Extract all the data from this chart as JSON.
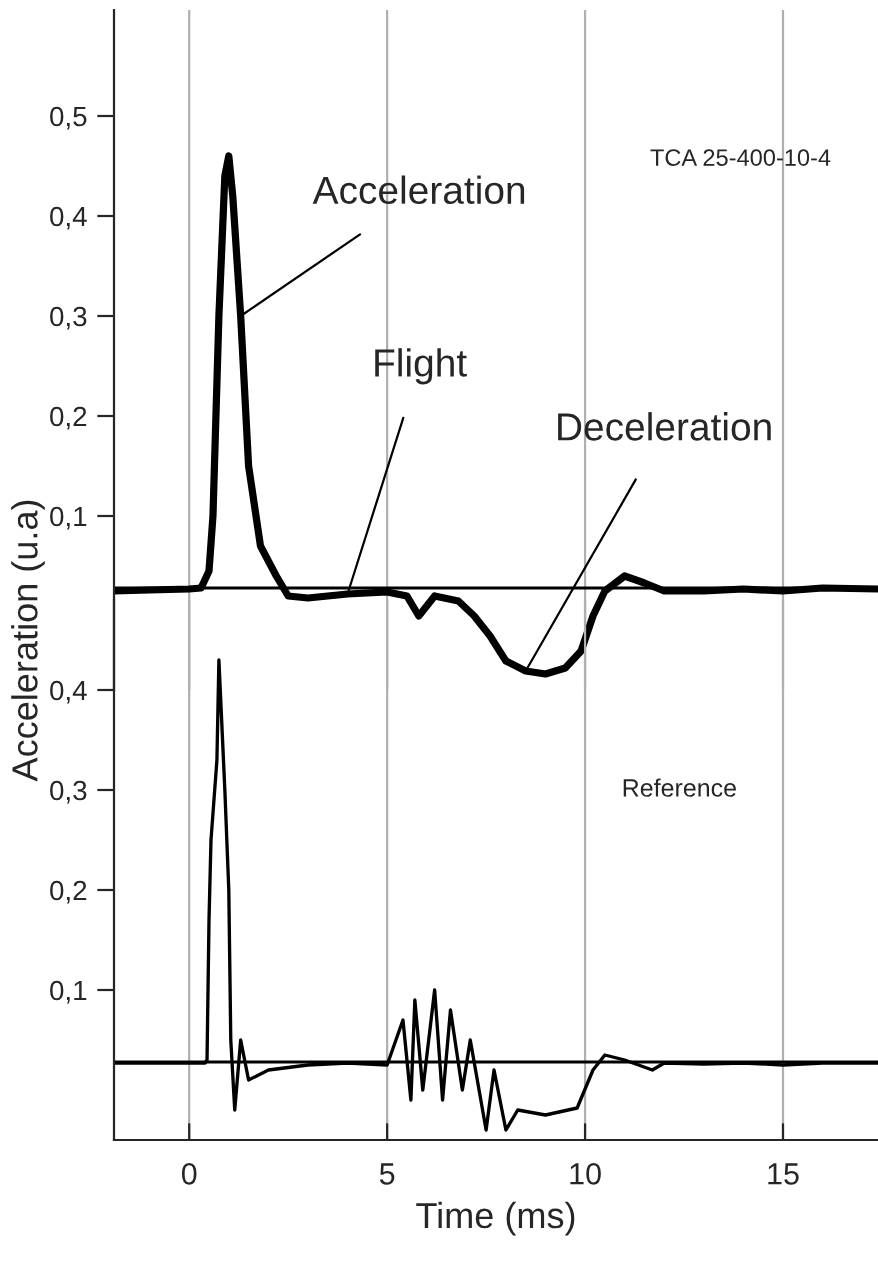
{
  "chart_data": [
    {
      "type": "line",
      "xlim": [
        -1.9,
        17.4
      ],
      "ylim": [
        -0.074,
        0.606
      ],
      "tick_labels": "y",
      "grid": "x",
      "xticks": [
        0,
        5,
        10,
        15
      ],
      "yticks": [
        {
          "value": 0.1,
          "label": "0,1"
        },
        {
          "value": 0.2,
          "label": "0,2"
        },
        {
          "value": 0.3,
          "label": "0,3"
        },
        {
          "value": 0.4,
          "label": "0,4"
        },
        {
          "value": 0.5,
          "label": "0,5"
        }
      ],
      "ylabel": "Acceleration (u.a)",
      "ref_lines": [
        {
          "axis": "y",
          "value": 0.028,
          "color": "#000000"
        }
      ],
      "annotations": [
        "TCA 25-400-10-4",
        {
          "text": "Acceleration",
          "x": 1.3,
          "y": 0.3
        },
        {
          "text": "Flight",
          "x": 4,
          "y": 0.022
        },
        {
          "text": "Deceleration",
          "x": 8.5,
          "y": -0.055
        }
      ],
      "series": [
        {
          "color": "#000000",
          "x": [
            -1.9,
            -1,
            0,
            0.3,
            0.5,
            0.6,
            0.75,
            0.9,
            1.0,
            1.1,
            1.3,
            1.5,
            1.8,
            2.2,
            2.5,
            3,
            4,
            5,
            5.5,
            5.8,
            6.2,
            6.8,
            7.2,
            7.6,
            8,
            8.5,
            9,
            9.5,
            9.9,
            10.2,
            10.5,
            11,
            11.5,
            12,
            13,
            14,
            15,
            16,
            17.4
          ],
          "values": [
            0.025,
            0.026,
            0.027,
            0.028,
            0.045,
            0.1,
            0.3,
            0.44,
            0.46,
            0.42,
            0.3,
            0.15,
            0.07,
            0.04,
            0.02,
            0.018,
            0.022,
            0.024,
            0.02,
            0.0,
            0.02,
            0.015,
            0.0,
            -0.02,
            -0.045,
            -0.055,
            -0.058,
            -0.052,
            -0.035,
            0.0,
            0.025,
            0.04,
            0.033,
            0.025,
            0.025,
            0.027,
            0.025,
            0.028,
            0.027
          ]
        }
      ]
    },
    {
      "type": "line",
      "xlim": [
        -1.9,
        17.4
      ],
      "ylim": [
        -0.05,
        0.49
      ],
      "grid": "x",
      "xlabel": "Time (ms)",
      "xticks": [
        0,
        5,
        10,
        15
      ],
      "yticks": [
        {
          "value": 0.1,
          "label": "0,1"
        },
        {
          "value": 0.2,
          "label": "0,2"
        },
        {
          "value": 0.3,
          "label": "0,3"
        },
        {
          "value": 0.4,
          "label": "0,4"
        }
      ],
      "ref_lines": [
        {
          "axis": "y",
          "value": 0.028,
          "color": "#000000"
        }
      ],
      "annotations": [
        "Reference"
      ],
      "series": [
        {
          "color": "#000000",
          "x": [
            -1.9,
            -1,
            0,
            0.4,
            0.45,
            0.5,
            0.55,
            0.7,
            0.75,
            0.9,
            1.0,
            1.05,
            1.15,
            1.3,
            1.5,
            2,
            3,
            4,
            5,
            5.4,
            5.6,
            5.7,
            5.9,
            6.2,
            6.4,
            6.6,
            6.9,
            7.1,
            7.5,
            7.7,
            8,
            8.3,
            9,
            9.8,
            10.2,
            10.5,
            11,
            11.7,
            12,
            13,
            14,
            15,
            16,
            17.4
          ],
          "values": [
            0.027,
            0.027,
            0.027,
            0.027,
            0.03,
            0.17,
            0.25,
            0.33,
            0.43,
            0.3,
            0.2,
            0.05,
            -0.02,
            0.05,
            0.01,
            0.02,
            0.025,
            0.027,
            0.025,
            0.07,
            -0.01,
            0.09,
            0.0,
            0.1,
            -0.01,
            0.08,
            0.0,
            0.05,
            -0.04,
            0.02,
            -0.04,
            -0.02,
            -0.025,
            -0.018,
            0.02,
            0.035,
            0.03,
            0.02,
            0.027,
            0.026,
            0.027,
            0.025,
            0.027,
            0.027
          ]
        }
      ]
    }
  ]
}
